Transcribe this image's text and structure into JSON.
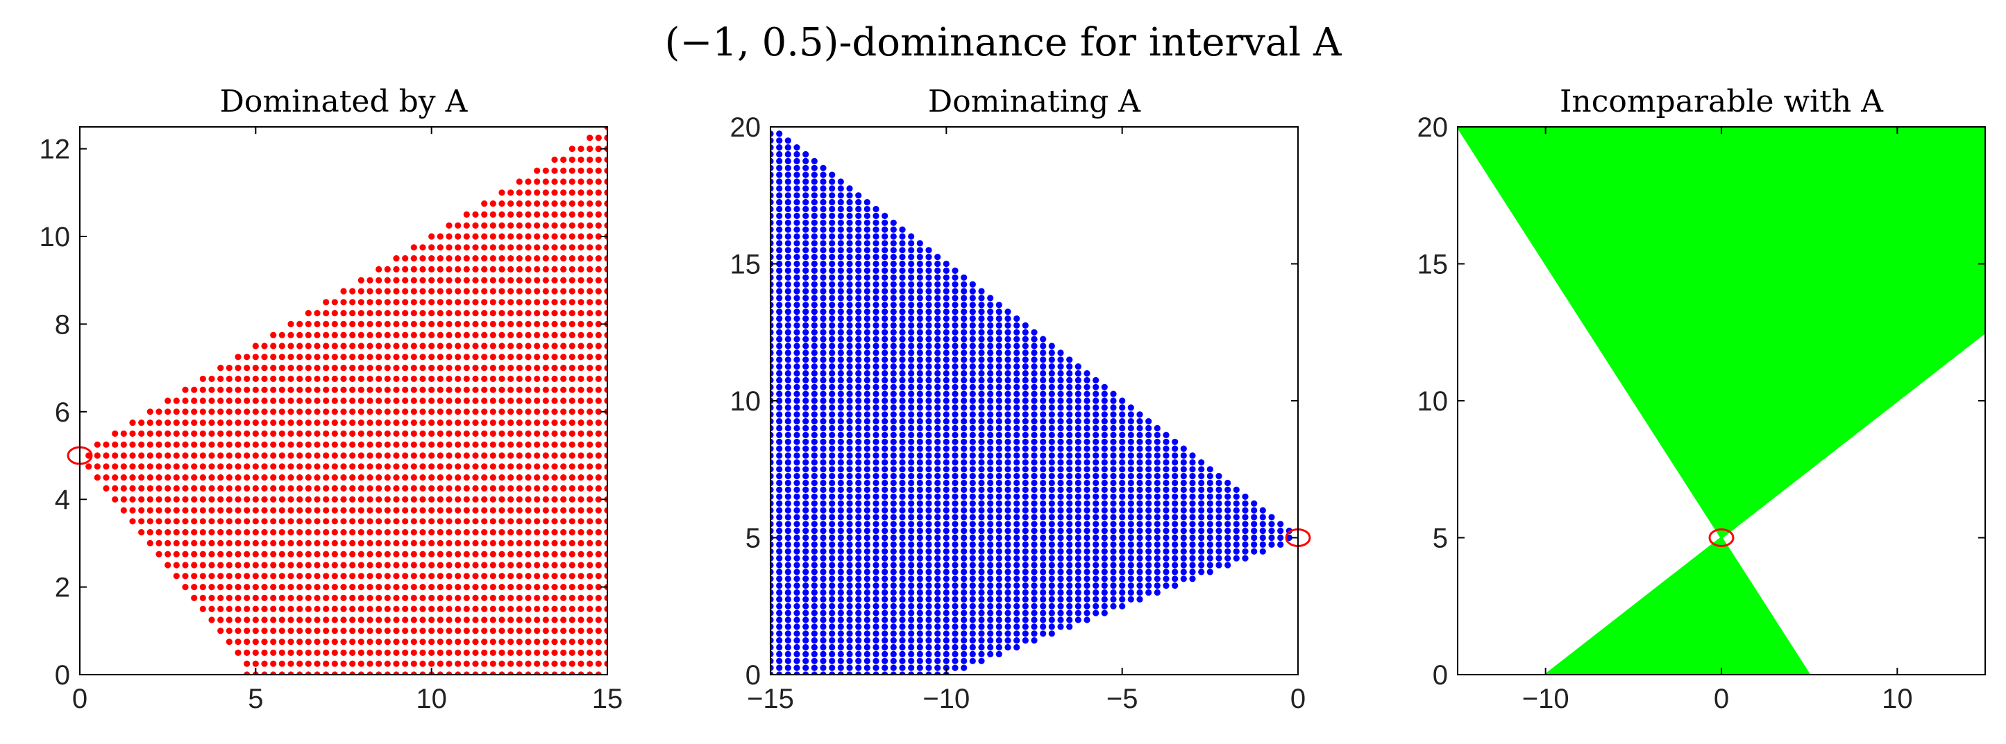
{
  "figure_title": "(−1, 0.5)-dominance for interval A",
  "chart_data": [
    {
      "type": "scatter",
      "title": "Dominated by A",
      "color": "#ff0000",
      "marker": "dot",
      "xlim": [
        0,
        15
      ],
      "ylim": [
        0,
        12.5
      ],
      "xticks": [
        0,
        5,
        10,
        15
      ],
      "yticks": [
        0,
        2,
        4,
        6,
        8,
        10,
        12
      ],
      "grid": false,
      "region": {
        "description": "filled lattice of points dominated by A",
        "vertices": [
          [
            0,
            5
          ],
          [
            4.75,
            0
          ],
          [
            15,
            0
          ],
          [
            15,
            12.5
          ]
        ]
      },
      "reference_point": {
        "x": 0,
        "y": 5,
        "marker": "open-circle",
        "color": "#ff0000"
      }
    },
    {
      "type": "scatter",
      "title": "Dominating A",
      "color": "#0000ff",
      "marker": "dot",
      "xlim": [
        -15,
        0
      ],
      "ylim": [
        0,
        20
      ],
      "xticks": [
        -15,
        -10,
        -5,
        0
      ],
      "yticks": [
        0,
        5,
        10,
        15,
        20
      ],
      "grid": false,
      "region": {
        "description": "filled lattice of points dominating A",
        "vertices": [
          [
            -15,
            20
          ],
          [
            -15,
            0
          ],
          [
            -10,
            0
          ],
          [
            0,
            5
          ]
        ]
      },
      "reference_point": {
        "x": 0,
        "y": 5,
        "marker": "open-circle",
        "color": "#ff0000"
      }
    },
    {
      "type": "area",
      "title": "Incomparable with A",
      "color": "#00ff00",
      "xlim": [
        -15,
        15
      ],
      "ylim": [
        0,
        20
      ],
      "xticks": [
        -10,
        0,
        10
      ],
      "yticks": [
        0,
        5,
        10,
        15,
        20
      ],
      "grid": false,
      "regions": [
        {
          "description": "upper region",
          "vertices": [
            [
              -15,
              20
            ],
            [
              15,
              20
            ],
            [
              15,
              12.5
            ],
            [
              0,
              5
            ]
          ]
        },
        {
          "description": "lower region",
          "vertices": [
            [
              0,
              5
            ],
            [
              -10,
              0
            ],
            [
              5,
              0
            ]
          ]
        }
      ],
      "reference_point": {
        "x": 0,
        "y": 5,
        "marker": "open-circle",
        "color": "#ff0000"
      }
    }
  ]
}
